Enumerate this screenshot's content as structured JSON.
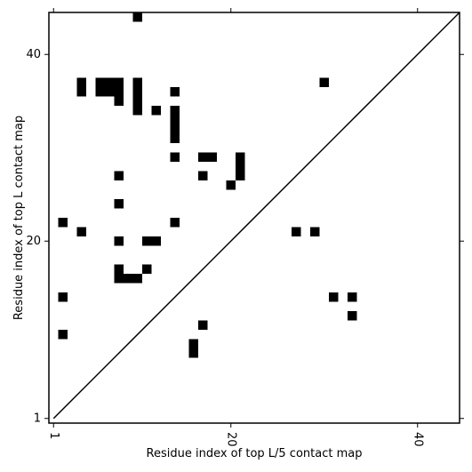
{
  "chart_data": {
    "type": "heatmap",
    "subtype": "contact-map",
    "xlabel": "Residue index of top L/5 contact map",
    "ylabel": "Residue index of top L contact map",
    "xlim": [
      0.5,
      44.5
    ],
    "ylim": [
      0.5,
      44.5
    ],
    "x_ticks": [
      1,
      20,
      40
    ],
    "y_ticks": [
      1,
      20,
      40
    ],
    "x_tick_rotation": "vertical",
    "grid": false,
    "diagonal": true,
    "cell_color": "#000000",
    "background": "#ffffff",
    "cells": [
      [
        10,
        44
      ],
      [
        4,
        36
      ],
      [
        4,
        37
      ],
      [
        6,
        36
      ],
      [
        6,
        37
      ],
      [
        7,
        36
      ],
      [
        7,
        37
      ],
      [
        8,
        35
      ],
      [
        8,
        36
      ],
      [
        8,
        37
      ],
      [
        10,
        34
      ],
      [
        10,
        35
      ],
      [
        10,
        36
      ],
      [
        10,
        37
      ],
      [
        12,
        34
      ],
      [
        14,
        36
      ],
      [
        14,
        31
      ],
      [
        14,
        32
      ],
      [
        14,
        33
      ],
      [
        14,
        34
      ],
      [
        14,
        29
      ],
      [
        17,
        29
      ],
      [
        18,
        29
      ],
      [
        17,
        27
      ],
      [
        20,
        26
      ],
      [
        21,
        27
      ],
      [
        21,
        28
      ],
      [
        21,
        29
      ],
      [
        8,
        27
      ],
      [
        8,
        24
      ],
      [
        2,
        22
      ],
      [
        4,
        21
      ],
      [
        14,
        22
      ],
      [
        8,
        20
      ],
      [
        11,
        20
      ],
      [
        12,
        20
      ],
      [
        8,
        17
      ],
      [
        8,
        16
      ],
      [
        9,
        16
      ],
      [
        10,
        16
      ],
      [
        11,
        17
      ],
      [
        2,
        14
      ],
      [
        2,
        10
      ],
      [
        17,
        11
      ],
      [
        16,
        8
      ],
      [
        16,
        9
      ],
      [
        27,
        21
      ],
      [
        29,
        21
      ],
      [
        30,
        37
      ],
      [
        31,
        14
      ],
      [
        33,
        14
      ],
      [
        33,
        12
      ]
    ]
  }
}
